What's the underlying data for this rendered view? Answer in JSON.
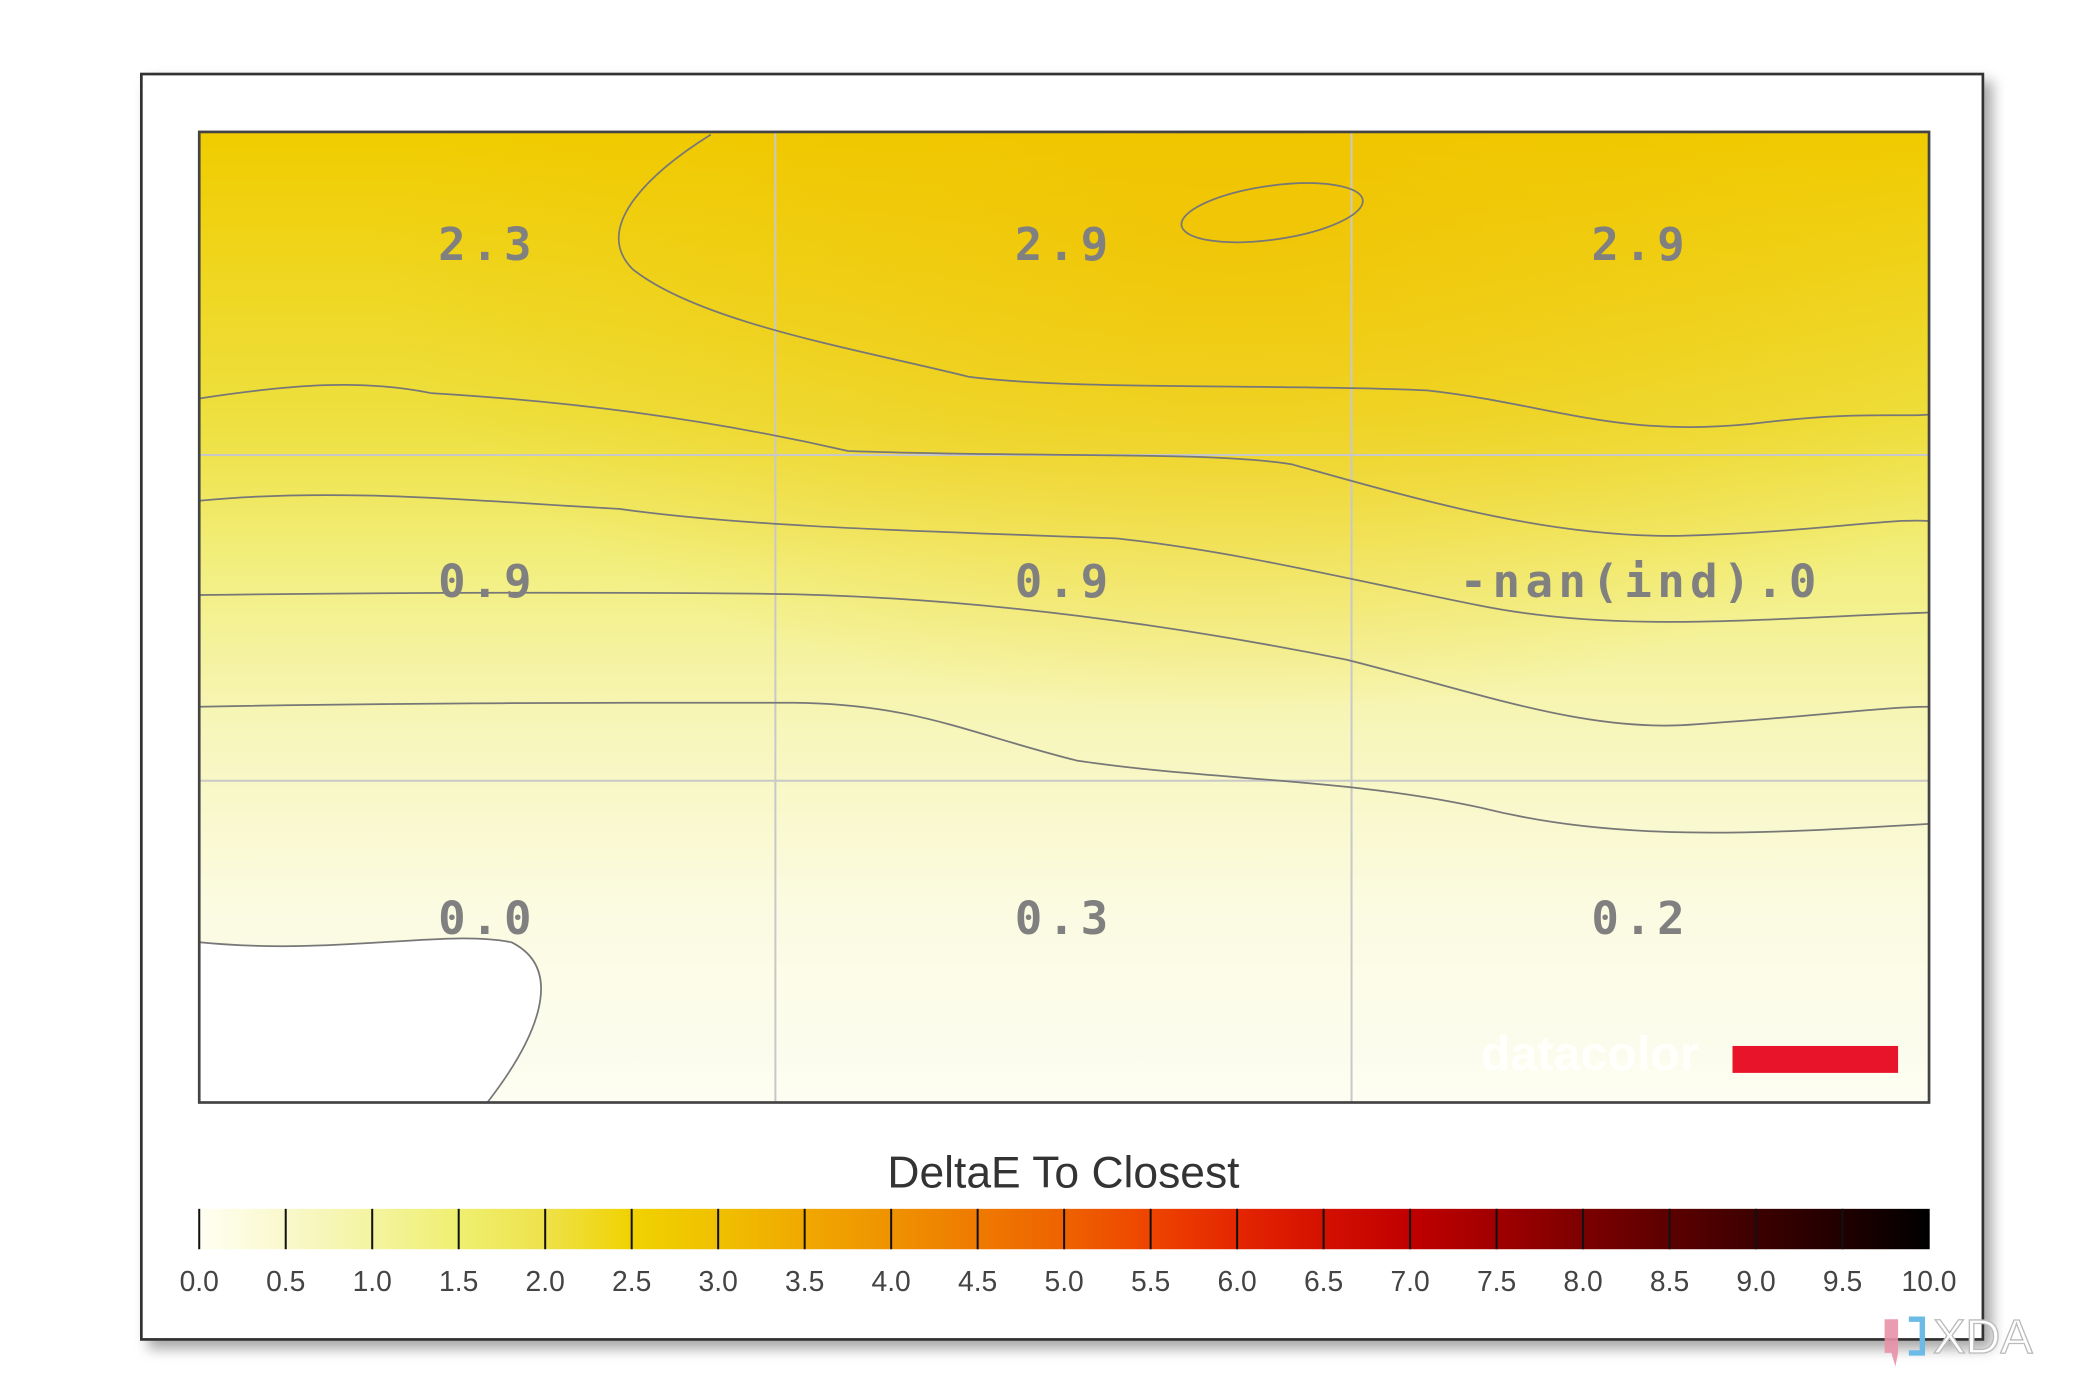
{
  "chart_data": {
    "type": "heatmap",
    "title": "",
    "rows": 3,
    "cols": 3,
    "cells": [
      [
        "2.3",
        "2.9",
        "2.9"
      ],
      [
        "0.9",
        "0.9",
        "-nan(ind).0"
      ],
      [
        "0.0",
        "0.3",
        "0.2"
      ]
    ],
    "grid": true,
    "contours": true,
    "colorbar": {
      "title": "DeltaE To Closest",
      "range": [
        0,
        10
      ],
      "ticks": [
        "0.0",
        "0.5",
        "1.0",
        "1.5",
        "2.0",
        "2.5",
        "3.0",
        "3.5",
        "4.0",
        "4.5",
        "5.0",
        "5.5",
        "6.0",
        "6.5",
        "7.0",
        "7.5",
        "8.0",
        "8.5",
        "9.0",
        "9.5",
        "10.0"
      ],
      "colors": [
        "#fffff2",
        "#f9f8cc",
        "#f4f4a0",
        "#efef70",
        "#eee24a",
        "#f0d200",
        "#f0c000",
        "#f0a800",
        "#ef9200",
        "#ef7a00",
        "#ee6200",
        "#ee4400",
        "#e42600",
        "#d41000",
        "#c00000",
        "#a00000",
        "#7c0000",
        "#5c0000",
        "#3c0000",
        "#200000",
        "#000000"
      ],
      "placement": "bottom"
    }
  },
  "watermarks": {
    "datacolor": "datacolor",
    "xda": "XDA",
    "datacolor_red": "#e8142a"
  }
}
